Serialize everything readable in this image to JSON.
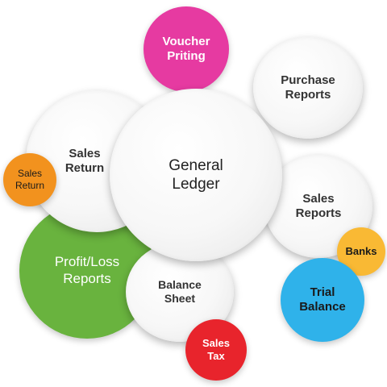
{
  "nodes": {
    "voucher": {
      "label": "Voucher\nPriting",
      "color": "#e63aa1"
    },
    "purchase_reports": {
      "label": "Purchase\nReports",
      "color": "#ffffff"
    },
    "sales_return_large": {
      "label": "Sales\nReturn",
      "color": "#ffffff"
    },
    "sales_return_small": {
      "label": "Sales\nReturn",
      "color": "#f2921e"
    },
    "general_ledger": {
      "label": "General\nLedger",
      "color": "#ffffff"
    },
    "sales_reports": {
      "label": "Sales\nReports",
      "color": "#ffffff"
    },
    "banks": {
      "label": "Banks",
      "color": "#f9b934"
    },
    "profit_loss": {
      "label": "Profit/Loss\nReports",
      "color": "#69b33e"
    },
    "balance_sheet": {
      "label": "Balance\nSheet",
      "color": "#ffffff"
    },
    "trial_balance": {
      "label": "Trial\nBalance",
      "color": "#2fb2ea"
    },
    "sales_tax": {
      "label": "Sales\nTax",
      "color": "#e8242c"
    }
  }
}
